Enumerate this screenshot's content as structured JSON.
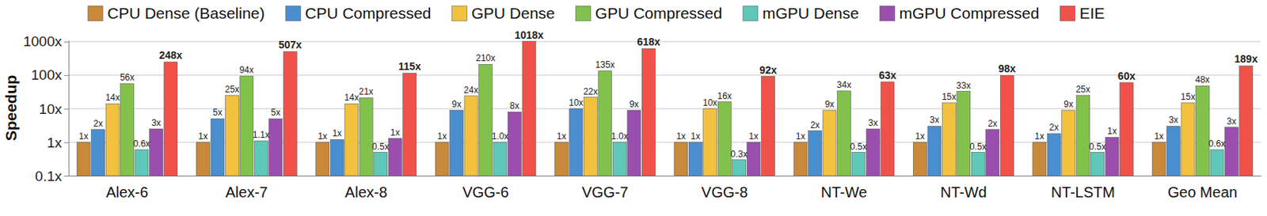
{
  "chart_data": {
    "type": "bar",
    "y_label": "Speedup",
    "categories": [
      "Alex-6",
      "Alex-7",
      "Alex-8",
      "VGG-6",
      "VGG-7",
      "VGG-8",
      "NT-We",
      "NT-Wd",
      "NT-LSTM",
      "Geo Mean"
    ],
    "series": [
      {
        "name": "CPU Dense (Baseline)",
        "color": "#c8893a",
        "values": [
          1,
          1,
          1,
          1,
          1,
          1,
          1,
          1,
          1,
          1
        ],
        "value_labels": [
          "1x",
          "1x",
          "1x",
          "1x",
          "1x",
          "1x",
          "1x",
          "1x",
          "1x",
          "1x"
        ]
      },
      {
        "name": "CPU Compressed",
        "color": "#4a8ed0",
        "values": [
          2.4,
          5,
          1.2,
          9,
          10,
          1,
          2.2,
          3,
          1.8,
          3
        ],
        "value_labels": [
          "2x",
          "5x",
          "1x",
          "9x",
          "10x",
          "1x",
          "2x",
          "3x",
          "2x",
          "3x"
        ]
      },
      {
        "name": "GPU Dense",
        "color": "#f2c23f",
        "values": [
          14,
          25,
          14,
          24,
          22,
          10,
          9,
          15,
          9,
          15
        ],
        "value_labels": [
          "14x",
          "25x",
          "14x",
          "24x",
          "22x",
          "10x",
          "9x",
          "15x",
          "9x",
          "15x"
        ]
      },
      {
        "name": "GPU Compressed",
        "color": "#82c24c",
        "values": [
          56,
          94,
          21,
          210,
          135,
          16,
          34,
          33,
          25,
          48
        ],
        "value_labels": [
          "56x",
          "94x",
          "21x",
          "210x",
          "135x",
          "16x",
          "34x",
          "33x",
          "25x",
          "48x"
        ]
      },
      {
        "name": "mGPU Dense",
        "color": "#5fc8b8",
        "values": [
          0.6,
          1.1,
          0.5,
          1.0,
          1.0,
          0.3,
          0.5,
          0.5,
          0.5,
          0.6
        ],
        "value_labels": [
          "0.6x",
          "1.1x",
          "0.5x",
          "1.0x",
          "1.0x",
          "0.3x",
          "0.5x",
          "0.5x",
          "0.5x",
          "0.6x"
        ]
      },
      {
        "name": "mGPU Compressed",
        "color": "#9a4fae",
        "values": [
          2.5,
          5,
          1.3,
          8,
          9,
          1,
          2.5,
          2.4,
          1.4,
          2.8
        ],
        "value_labels": [
          "3x",
          "5x",
          "1x",
          "8x",
          "9x",
          "1x",
          "3x",
          "2x",
          "1x",
          "3x"
        ]
      },
      {
        "name": "EIE",
        "color": "#f0524a",
        "values": [
          248,
          507,
          115,
          1018,
          618,
          92,
          63,
          98,
          60,
          189
        ],
        "value_labels": [
          "248x",
          "507x",
          "115x",
          "1018x",
          "618x",
          "92x",
          "63x",
          "98x",
          "60x",
          "189x"
        ]
      }
    ],
    "ylim": [
      0.1,
      1100
    ],
    "yticks": [
      {
        "value": 0.1,
        "label": "0.1x"
      },
      {
        "value": 1,
        "label": "1x"
      },
      {
        "value": 10,
        "label": "10x"
      },
      {
        "value": 100,
        "label": "100x"
      },
      {
        "value": 1000,
        "label": "1000x"
      }
    ],
    "log": "y",
    "grid": true,
    "legend": "top",
    "data_labels": true
  }
}
